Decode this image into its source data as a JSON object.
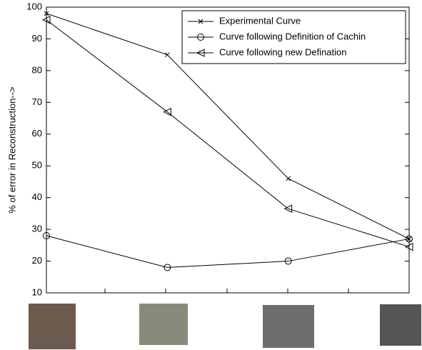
{
  "chart_data": {
    "type": "line",
    "y_label": "% of error in Reconstruction-->",
    "categories": [
      null,
      null,
      null,
      null
    ],
    "ylim": [
      10,
      100
    ],
    "yticks": [
      10,
      20,
      30,
      40,
      50,
      60,
      70,
      80,
      90,
      100
    ],
    "grid": false,
    "legend": "upper right",
    "series": [
      {
        "name": "Experimental Curve",
        "color": "#000000",
        "marker": "x",
        "values": [
          98,
          85,
          46,
          27
        ]
      },
      {
        "name": "Curve following Definition of Cachin",
        "color": "#000000",
        "marker": "o",
        "values": [
          28,
          18,
          20,
          27
        ]
      },
      {
        "name": "Curve following new Defination",
        "color": "#000000",
        "marker": "<",
        "values": [
          96,
          67,
          36.5,
          24.5
        ]
      }
    ]
  }
}
